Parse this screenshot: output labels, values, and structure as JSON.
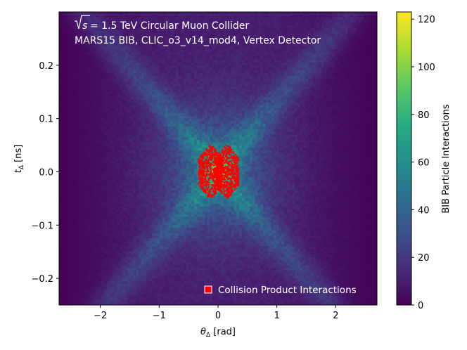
{
  "chart_data": {
    "type": "heatmap",
    "title": "",
    "xlabel": {
      "symbol": "θ",
      "sub": "Δ",
      "unit": " [rad]"
    },
    "ylabel": {
      "symbol": "t",
      "sub": "Δ",
      "unit": " [ns]"
    },
    "xlim": [
      -2.7,
      2.7
    ],
    "ylim": [
      -0.25,
      0.3
    ],
    "x_ticks": [
      -2,
      -1,
      0,
      1,
      2
    ],
    "x_tick_labels": [
      "−2",
      "−1",
      "0",
      "1",
      "2"
    ],
    "y_ticks": [
      -0.2,
      -0.1,
      0.0,
      0.1,
      0.2
    ],
    "y_tick_labels": [
      "−0.2",
      "−0.1",
      "0.0",
      "0.1",
      "0.2"
    ],
    "annotations": [
      {
        "prefix": "s",
        "text": " = 1.5 TeV Circular Muon Collider"
      },
      {
        "text": "MARS15 BIB, CLIC_o3_v14_mod4, Vertex Detector"
      }
    ],
    "colorbar": {
      "label": "BIB Particle Interactions",
      "min": 0,
      "max": 123,
      "ticks": [
        0,
        20,
        40,
        60,
        80,
        100,
        120
      ],
      "tick_labels": [
        "0",
        "20",
        "40",
        "60",
        "80",
        "100",
        "120"
      ],
      "colormap": "viridis"
    },
    "series": [
      {
        "name": "BIB Particle Interactions",
        "kind": "2d-histogram",
        "description": "X-shaped band of interactions crossing near theta=0, t=0, denser toward the center",
        "band_slope_ns_per_rad": 0.13,
        "peak_value_approx": 80,
        "background_value_approx": 10
      },
      {
        "name": "Collision Product Interactions",
        "kind": "scatter",
        "color": "#ff0000",
        "clusters": [
          {
            "theta_center": -0.13,
            "t_center": 0.0,
            "theta_halfwidth": 0.2,
            "t_halfwidth": 0.045
          },
          {
            "theta_center": 0.15,
            "t_center": 0.0,
            "theta_halfwidth": 0.2,
            "t_halfwidth": 0.045
          }
        ]
      }
    ],
    "legend": {
      "placement": "lower right",
      "entries": [
        {
          "label": "Collision Product Interactions",
          "color": "#ff0000",
          "marker": "square"
        }
      ]
    }
  }
}
